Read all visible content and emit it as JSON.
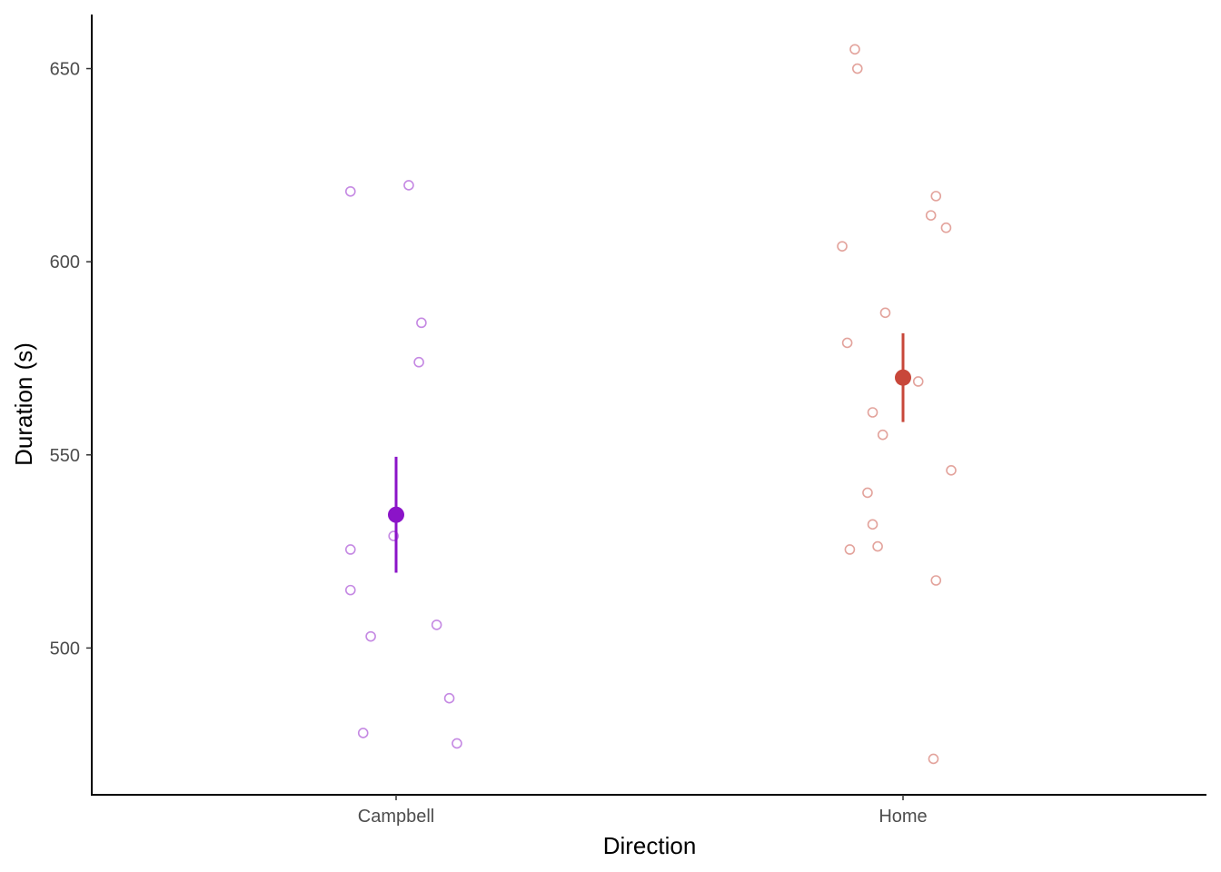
{
  "chart_data": {
    "type": "scatter",
    "xlabel": "Direction",
    "ylabel": "Duration (s)",
    "categories": [
      "Campbell",
      "Home"
    ],
    "ylim": [
      462,
      664
    ],
    "y_ticks": [
      500,
      550,
      600,
      650
    ],
    "grid": false,
    "colors": {
      "Campbell": "#8b14c8",
      "Home": "#c8473a"
    },
    "points": {
      "Campbell": [
        {
          "dx": -0.18,
          "y": 618.2
        },
        {
          "dx": 0.05,
          "y": 619.8
        },
        {
          "dx": 0.1,
          "y": 584.2
        },
        {
          "dx": 0.09,
          "y": 574.0
        },
        {
          "dx": -0.01,
          "y": 529.0
        },
        {
          "dx": -0.18,
          "y": 525.5
        },
        {
          "dx": -0.18,
          "y": 515.0
        },
        {
          "dx": 0.16,
          "y": 506.0
        },
        {
          "dx": -0.1,
          "y": 503.0
        },
        {
          "dx": 0.21,
          "y": 487.0
        },
        {
          "dx": -0.13,
          "y": 478.0
        },
        {
          "dx": 0.24,
          "y": 475.3
        }
      ],
      "Home": [
        {
          "dx": -0.19,
          "y": 655.0
        },
        {
          "dx": -0.18,
          "y": 650.0
        },
        {
          "dx": 0.13,
          "y": 617.0
        },
        {
          "dx": 0.11,
          "y": 612.0
        },
        {
          "dx": 0.17,
          "y": 608.8
        },
        {
          "dx": -0.24,
          "y": 604.0
        },
        {
          "dx": -0.07,
          "y": 586.8
        },
        {
          "dx": -0.22,
          "y": 579.0
        },
        {
          "dx": 0.06,
          "y": 569.0
        },
        {
          "dx": -0.12,
          "y": 561.0
        },
        {
          "dx": -0.08,
          "y": 555.2
        },
        {
          "dx": 0.19,
          "y": 546.0
        },
        {
          "dx": -0.14,
          "y": 540.2
        },
        {
          "dx": -0.12,
          "y": 532.0
        },
        {
          "dx": -0.1,
          "y": 526.3
        },
        {
          "dx": -0.21,
          "y": 525.5
        },
        {
          "dx": 0.13,
          "y": 517.5
        },
        {
          "dx": 0.12,
          "y": 471.3
        }
      ]
    },
    "summary": [
      {
        "name": "Campbell",
        "mean": 534.5,
        "lower": 519.5,
        "upper": 549.5
      },
      {
        "name": "Home",
        "mean": 570.0,
        "lower": 558.5,
        "upper": 581.5
      }
    ]
  }
}
